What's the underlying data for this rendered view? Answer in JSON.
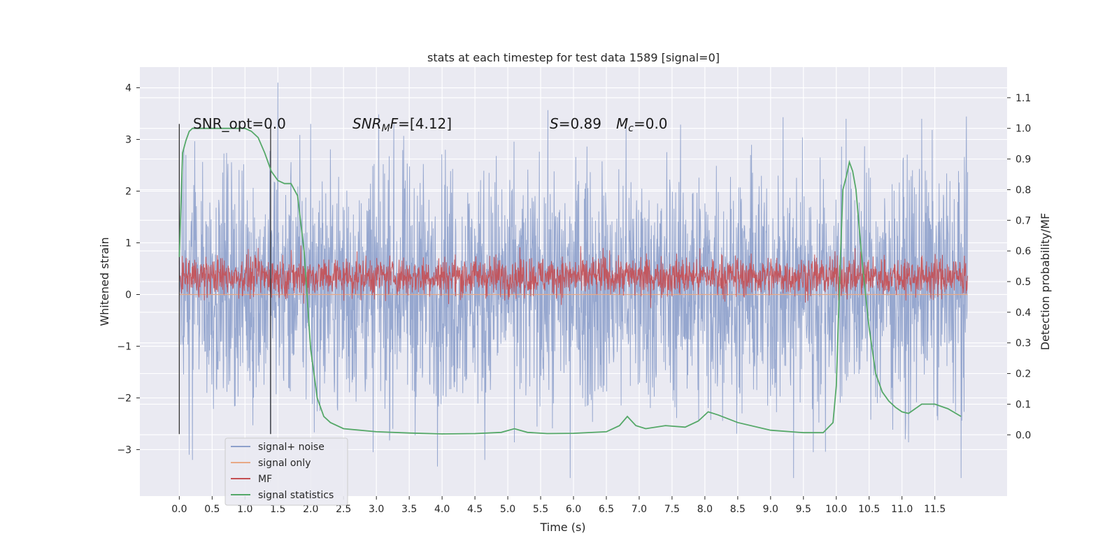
{
  "chart_data": {
    "type": "line",
    "title": "stats at each timestep for test data 1589 [signal=0]",
    "xlabel": "Time (s)",
    "ylabel": "Whitened strain",
    "ylabel_right": "Detection probability/MF",
    "xlim": [
      -0.6,
      12.6
    ],
    "ylim": [
      -3.9,
      4.4
    ],
    "ylim_right": [
      -0.2,
      1.2
    ],
    "x_ticks": [
      "0.0",
      "0.5",
      "1.0",
      "1.5",
      "2.0",
      "2.5",
      "3.0",
      "3.5",
      "4.0",
      "4.5",
      "5.0",
      "5.5",
      "6.0",
      "6.5",
      "7.0",
      "7.5",
      "8.0",
      "8.5",
      "9.0",
      "9.5",
      "10.0",
      "10.5",
      "11.0",
      "11.5"
    ],
    "y_ticks": [
      "−3",
      "−2",
      "−1",
      "0",
      "1",
      "2",
      "3",
      "4"
    ],
    "y_ticks_right": [
      "0.0",
      "0.1",
      "0.2",
      "0.3",
      "0.4",
      "0.5",
      "0.6",
      "0.7",
      "0.8",
      "0.9",
      "1.0",
      "1.1"
    ],
    "grid": true,
    "legend_position": "lower-left",
    "annotations": {
      "snr_opt": "SNR_opt=0.0",
      "snr_mf_name": "SNR",
      "snr_mf_sub": "M",
      "snr_mf_rest": "F=[4.12]",
      "s_name": "S",
      "s_value": "=0.89",
      "mc_name": "M",
      "mc_sub": "c",
      "mc_value": "=0.0"
    },
    "vlines_x": [
      0.0,
      1.39
    ],
    "series": [
      {
        "name": "signal+ noise",
        "color": "#8da0cb",
        "axis": "left",
        "style": "dense-noise",
        "x_range": [
          0.0,
          12.0
        ],
        "typical_range": [
          -1.7,
          2.0
        ],
        "peaks": [
          [
            0.0,
            2.2
          ],
          [
            0.1,
            2.7
          ],
          [
            1.5,
            4.1
          ],
          [
            2.0,
            3.3
          ],
          [
            4.05,
            2.8
          ],
          [
            6.8,
            3.3
          ],
          [
            10.15,
            3.4
          ],
          [
            11.3,
            3.4
          ]
        ],
        "troughs": [
          [
            0.15,
            -3.1
          ],
          [
            0.2,
            -3.2
          ],
          [
            2.95,
            -3.05
          ],
          [
            4.65,
            -3.2
          ],
          [
            5.95,
            -3.55
          ],
          [
            9.35,
            -3.55
          ],
          [
            9.65,
            -3.05
          ],
          [
            11.05,
            -2.8
          ],
          [
            11.9,
            -3.55
          ]
        ]
      },
      {
        "name": "signal only",
        "color": "#e8a986",
        "axis": "left",
        "x": [
          0.0,
          12.0
        ],
        "y": [
          0.0,
          0.0
        ]
      },
      {
        "name": "MF",
        "color": "#c44e52",
        "axis": "left",
        "style": "dense-noise",
        "x_range": [
          0.0,
          12.0
        ],
        "typical_range": [
          0.0,
          0.7
        ],
        "peaks": [
          [
            0.0,
            0.65
          ],
          [
            1.2,
            0.9
          ],
          [
            1.85,
            0.95
          ],
          [
            6.45,
            0.9
          ],
          [
            11.95,
            0.75
          ]
        ]
      },
      {
        "name": "signal statistics",
        "color": "#55a868",
        "axis": "right",
        "x": [
          0.0,
          0.05,
          0.1,
          0.15,
          0.2,
          0.3,
          0.5,
          0.8,
          1.0,
          1.1,
          1.2,
          1.3,
          1.4,
          1.5,
          1.6,
          1.7,
          1.8,
          1.9,
          2.0,
          2.1,
          2.2,
          2.3,
          2.5,
          3.0,
          3.5,
          4.0,
          4.5,
          4.9,
          5.1,
          5.3,
          5.6,
          6.0,
          6.5,
          6.7,
          6.82,
          6.95,
          7.1,
          7.4,
          7.7,
          7.9,
          8.05,
          8.2,
          8.5,
          9.0,
          9.5,
          9.8,
          9.95,
          10.0,
          10.05,
          10.1,
          10.15,
          10.2,
          10.25,
          10.3,
          10.4,
          10.5,
          10.6,
          10.7,
          10.8,
          10.9,
          11.0,
          11.1,
          11.2,
          11.3,
          11.5,
          11.7,
          11.9
        ],
        "y": [
          0.58,
          0.92,
          0.96,
          0.99,
          1.0,
          1.0,
          1.0,
          1.0,
          1.0,
          0.99,
          0.97,
          0.92,
          0.86,
          0.83,
          0.82,
          0.82,
          0.78,
          0.6,
          0.28,
          0.12,
          0.06,
          0.04,
          0.02,
          0.01,
          0.006,
          0.003,
          0.004,
          0.008,
          0.02,
          0.008,
          0.004,
          0.005,
          0.01,
          0.03,
          0.06,
          0.03,
          0.02,
          0.03,
          0.025,
          0.045,
          0.075,
          0.065,
          0.04,
          0.015,
          0.007,
          0.007,
          0.04,
          0.16,
          0.5,
          0.8,
          0.84,
          0.89,
          0.86,
          0.8,
          0.55,
          0.35,
          0.2,
          0.14,
          0.11,
          0.09,
          0.075,
          0.07,
          0.085,
          0.1,
          0.1,
          0.085,
          0.06
        ]
      }
    ]
  }
}
